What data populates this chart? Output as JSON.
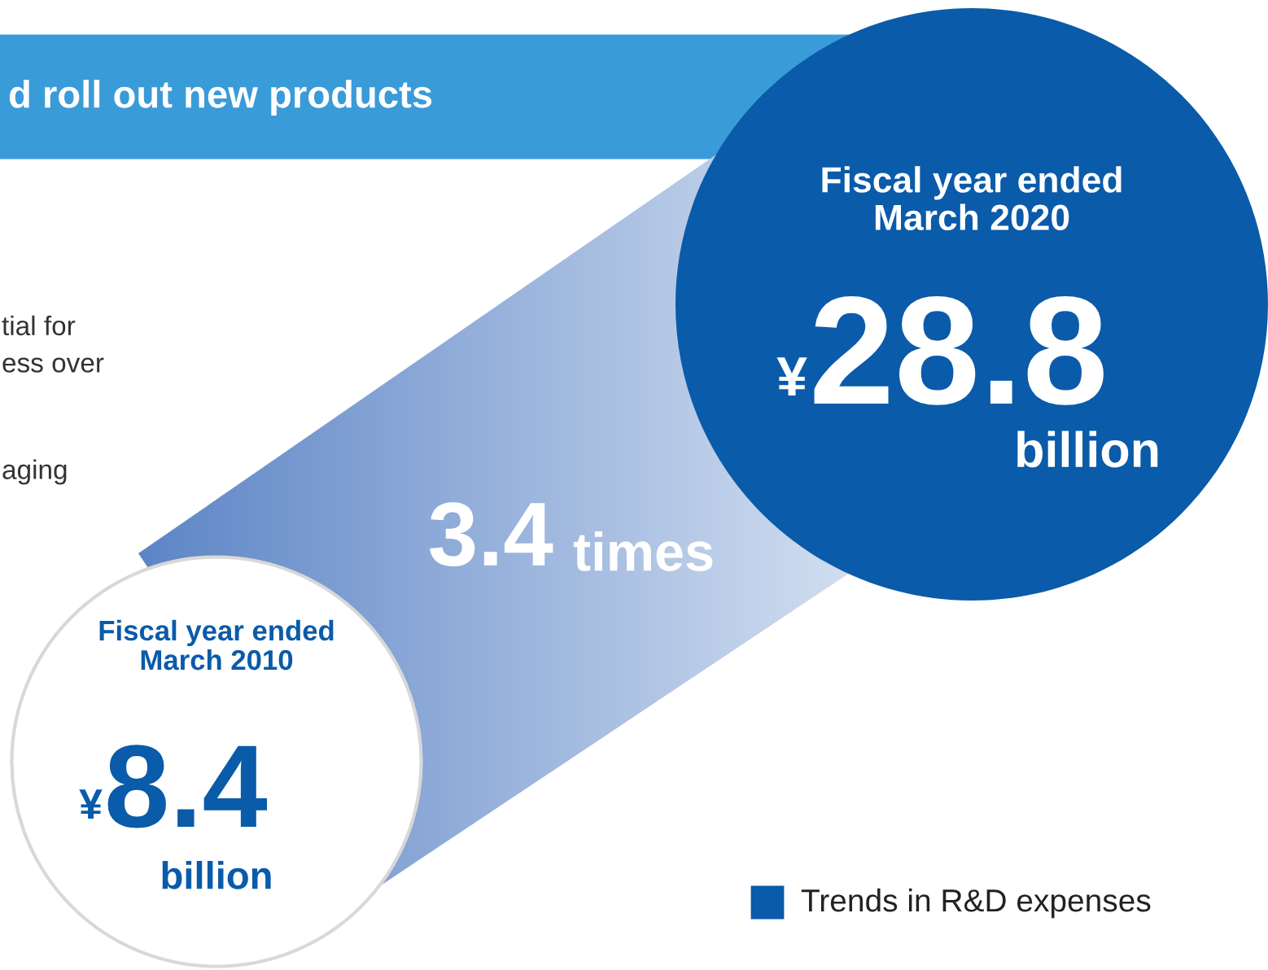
{
  "chart_data": {
    "type": "other",
    "title": "d roll out new products",
    "categories": [
      "Fiscal year ended\nMarch 2010",
      "Fiscal year ended\nMarch 2020"
    ],
    "values": [
      8.4,
      28.8
    ],
    "data_labels": true,
    "colors": [
      "#ffffff",
      "#0a5ba9"
    ],
    "annotations": [
      "3.4 times",
      "Trends in R&D expenses",
      "tial for\ness over",
      "aging",
      "¥",
      "billion",
      "¥",
      "billion"
    ]
  }
}
